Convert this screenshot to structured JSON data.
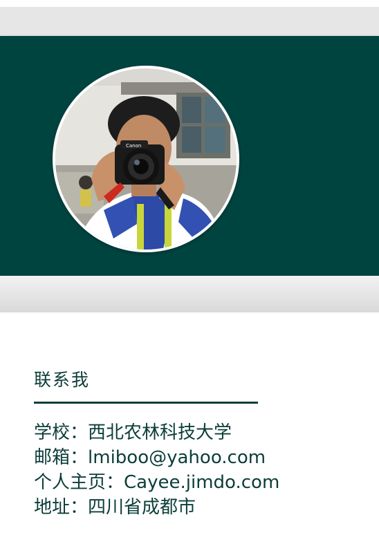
{
  "profile": {
    "avatar_alt": "boy holding a Canon camera",
    "camera_brand": "Canon"
  },
  "contact": {
    "title": "联系我",
    "school_label": "学校：",
    "school_value": "西北农林科技大学",
    "email_label": "邮箱：",
    "email_value": "lmiboo@yahoo.com",
    "homepage_label": "个人主页：",
    "homepage_value": "Cayee.jimdo.com",
    "address_label": "地址：",
    "address_value": "四川省成都市"
  },
  "colors": {
    "hero_background": "#004440",
    "text": "#0b3d39",
    "avatar_border": "#ffffff"
  }
}
